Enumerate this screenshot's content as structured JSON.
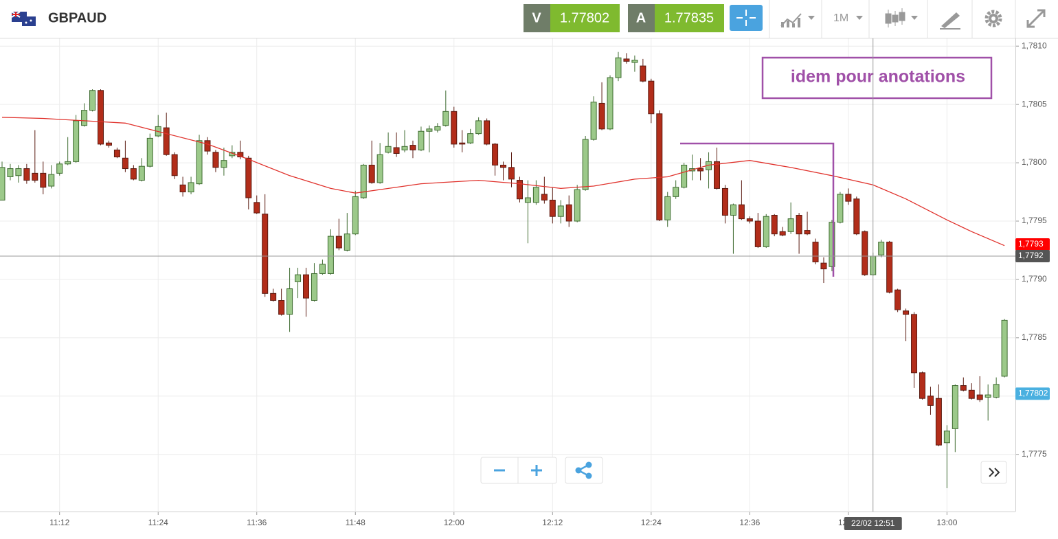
{
  "toolbar": {
    "symbol": "GBPAUD",
    "bid_label": "V",
    "bid": "1.77802",
    "ask_label": "A",
    "ask": "1.77835",
    "timeframe": "1M"
  },
  "chart_data": {
    "type": "candlestick",
    "annotation": "idem pour anotations",
    "up_color": "#9cc98a",
    "down_color": "#b22d1a",
    "xlim": [
      664.75,
      788.33
    ],
    "xticks": [
      {
        "value": 672,
        "label": "11:12"
      },
      {
        "value": 684,
        "label": "11:24"
      },
      {
        "value": 696,
        "label": "11:36"
      },
      {
        "value": 708,
        "label": "11:48"
      },
      {
        "value": 720,
        "label": "12:00"
      },
      {
        "value": 732,
        "label": "12:12"
      },
      {
        "value": 744,
        "label": "12:24"
      },
      {
        "value": 756,
        "label": "12:36"
      },
      {
        "value": 768,
        "label": "12:48"
      },
      {
        "value": 780,
        "label": "13:00"
      }
    ],
    "ylim": [
      1.77701,
      1.78106
    ],
    "yticks": [
      {
        "value": 1.7775,
        "label": "1,7775"
      },
      {
        "value": 1.778,
        "label": "1,7780"
      },
      {
        "value": 1.7785,
        "label": "1,7785"
      },
      {
        "value": 1.779,
        "label": "1,7790"
      },
      {
        "value": 1.7795,
        "label": "1,7795"
      },
      {
        "value": 1.78,
        "label": "1,7800"
      },
      {
        "value": 1.7805,
        "label": "1,7805"
      },
      {
        "value": 1.781,
        "label": "1,7810"
      }
    ],
    "grid": true,
    "x": [
      665,
      666,
      667,
      668,
      669,
      670,
      671,
      672,
      673,
      674,
      675,
      676,
      677,
      678,
      679,
      680,
      681,
      682,
      683,
      684,
      685,
      686,
      687,
      688,
      689,
      690,
      691,
      692,
      693,
      694,
      695,
      696,
      697,
      698,
      699,
      700,
      701,
      702,
      703,
      704,
      705,
      706,
      707,
      708,
      709,
      710,
      711,
      712,
      713,
      714,
      715,
      716,
      717,
      718,
      719,
      720,
      721,
      722,
      723,
      724,
      725,
      726,
      727,
      728,
      729,
      730,
      731,
      732,
      733,
      734,
      735,
      736,
      737,
      738,
      739,
      740,
      741,
      742,
      743,
      744,
      745,
      746,
      747,
      748,
      749,
      750,
      751,
      752,
      753,
      754,
      755,
      756,
      757,
      758,
      759,
      760,
      761,
      762,
      763,
      764,
      765,
      766,
      767,
      768,
      769,
      770,
      771,
      772,
      773,
      774,
      775,
      776,
      777,
      778,
      779,
      780,
      781,
      782,
      783,
      784,
      785,
      786,
      787
    ],
    "open": [
      1.77968,
      1.77988,
      1.77989,
      1.77995,
      1.77991,
      1.77991,
      1.7798,
      1.77991,
      1.77999,
      1.78001,
      1.78032,
      1.78045,
      1.78062,
      1.78017,
      1.78011,
      1.78004,
      1.77995,
      1.77985,
      1.77997,
      1.78023,
      1.7803,
      1.78007,
      1.77981,
      1.77975,
      1.77982,
      1.78019,
      1.78009,
      1.77996,
      1.78006,
      1.78009,
      1.78004,
      1.77966,
      1.77956,
      1.77888,
      1.77882,
      1.7787,
      1.77898,
      1.77904,
      1.77882,
      1.77905,
      1.77905,
      1.77937,
      1.77925,
      1.77939,
      1.7797,
      1.77998,
      1.77983,
      1.78009,
      1.78013,
      1.78011,
      1.78015,
      1.78011,
      1.78027,
      1.78028,
      1.78032,
      1.78044,
      1.78017,
      1.78017,
      1.78025,
      1.78036,
      1.78016,
      1.77998,
      1.77996,
      1.77985,
      1.77966,
      1.77966,
      1.77973,
      1.77968,
      1.77954,
      1.77964,
      1.7795,
      1.77977,
      1.7802,
      1.78051,
      1.78029,
      1.78073,
      1.78089,
      1.78086,
      1.78083,
      1.7807,
      1.78042,
      1.77951,
      1.77971,
      1.77979,
      1.77993,
      1.77995,
      1.77994,
      1.78001,
      1.77978,
      1.77955,
      1.77964,
      1.77952,
      1.7795,
      1.77928,
      1.77955,
      1.77941,
      1.77941,
      1.77955,
      1.77942,
      1.77932,
      1.77914,
      1.77911,
      1.77949,
      1.77973,
      1.77969,
      1.77941,
      1.77904,
      1.77921,
      1.77932,
      1.77891,
      1.77873,
      1.7787,
      1.7782,
      1.778,
      1.77798,
      1.7776,
      1.77772,
      1.77809,
      1.77805,
      1.77801,
      1.77799,
      1.77799,
      1.77817
    ],
    "high": [
      1.78001,
      1.77999,
      1.77998,
      1.77999,
      1.78028,
      1.78001,
      1.77998,
      1.78001,
      1.78022,
      1.78041,
      1.78051,
      1.78063,
      1.78063,
      1.78019,
      1.78013,
      1.78019,
      1.77998,
      1.78004,
      1.78025,
      1.78041,
      1.78043,
      1.78009,
      1.77988,
      1.77988,
      1.78024,
      1.78022,
      1.78011,
      1.78013,
      1.78015,
      1.78019,
      1.78006,
      1.77972,
      1.77973,
      1.77892,
      1.77892,
      1.7791,
      1.7791,
      1.7791,
      1.77914,
      1.77917,
      1.77943,
      1.77952,
      1.77957,
      1.77976,
      1.77999,
      1.78019,
      1.78017,
      1.78026,
      1.78026,
      1.78028,
      1.78019,
      1.78031,
      1.78032,
      1.78034,
      1.78062,
      1.78048,
      1.78028,
      1.78029,
      1.78039,
      1.78038,
      1.78017,
      1.78001,
      1.78009,
      1.77988,
      1.77985,
      1.77985,
      1.77988,
      1.77979,
      1.77968,
      1.77972,
      1.77981,
      1.78023,
      1.78057,
      1.78069,
      1.78075,
      1.78095,
      1.78094,
      1.78092,
      1.78089,
      1.78072,
      1.78045,
      1.77975,
      1.77985,
      1.78,
      1.78007,
      1.78004,
      1.78009,
      1.78013,
      1.77981,
      1.77965,
      1.77985,
      1.77954,
      1.77957,
      1.77956,
      1.77956,
      1.77945,
      1.77966,
      1.77957,
      1.77958,
      1.77935,
      1.77919,
      1.77951,
      1.77975,
      1.77978,
      1.77971,
      1.77942,
      1.77923,
      1.77934,
      1.77933,
      1.77892,
      1.77875,
      1.77872,
      1.77821,
      1.77808,
      1.7781,
      1.77775,
      1.7781,
      1.77816,
      1.77811,
      1.77817,
      1.7781,
      1.77816,
      1.77866
    ],
    "low": [
      1.77968,
      1.77985,
      1.77983,
      1.77982,
      1.77983,
      1.77973,
      1.77978,
      1.77989,
      1.77998,
      1.78,
      1.78031,
      1.78044,
      1.78015,
      1.78013,
      1.78004,
      1.77992,
      1.77985,
      1.77984,
      1.77996,
      1.78022,
      1.78006,
      1.77986,
      1.77971,
      1.77973,
      1.77981,
      1.78007,
      1.77992,
      1.77989,
      1.78004,
      1.78003,
      1.7796,
      1.77956,
      1.77885,
      1.77881,
      1.77869,
      1.77855,
      1.77884,
      1.77868,
      1.77881,
      1.77904,
      1.77904,
      1.77925,
      1.77924,
      1.77938,
      1.77969,
      1.77982,
      1.77982,
      1.78008,
      1.78005,
      1.78009,
      1.78004,
      1.7801,
      1.78009,
      1.78026,
      1.78031,
      1.78013,
      1.78009,
      1.78016,
      1.78024,
      1.78015,
      1.77989,
      1.77985,
      1.77979,
      1.77966,
      1.77931,
      1.77964,
      1.77965,
      1.77948,
      1.77948,
      1.77945,
      1.77949,
      1.77976,
      1.78019,
      1.78028,
      1.78028,
      1.7807,
      1.78085,
      1.78078,
      1.78069,
      1.78034,
      1.7795,
      1.77945,
      1.77969,
      1.77978,
      1.77985,
      1.77985,
      1.77978,
      1.77977,
      1.77948,
      1.77922,
      1.77951,
      1.77948,
      1.77927,
      1.77927,
      1.77937,
      1.77937,
      1.77939,
      1.77922,
      1.77938,
      1.77913,
      1.77897,
      1.77907,
      1.77948,
      1.77964,
      1.77938,
      1.77903,
      1.77903,
      1.77919,
      1.77888,
      1.77872,
      1.77847,
      1.77807,
      1.77797,
      1.77784,
      1.77757,
      1.77721,
      1.77752,
      1.77804,
      1.77797,
      1.77795,
      1.77779,
      1.77798,
      1.77816
    ],
    "close": [
      1.77996,
      1.77995,
      1.77995,
      1.77985,
      1.77985,
      1.77979,
      1.7799,
      1.77999,
      1.78001,
      1.78036,
      1.78045,
      1.78062,
      1.78016,
      1.78015,
      1.78005,
      1.77995,
      1.77986,
      1.77997,
      1.78021,
      1.78031,
      1.78007,
      1.77989,
      1.77975,
      1.77983,
      1.78019,
      1.7801,
      1.77996,
      1.78002,
      1.78009,
      1.78005,
      1.7797,
      1.77957,
      1.77888,
      1.77882,
      1.7787,
      1.77892,
      1.77904,
      1.77884,
      1.77905,
      1.77913,
      1.77937,
      1.77927,
      1.77939,
      1.77971,
      1.77998,
      1.77983,
      1.78007,
      1.78014,
      1.78008,
      1.78014,
      1.78011,
      1.78027,
      1.78029,
      1.78031,
      1.78044,
      1.78016,
      1.78016,
      1.78025,
      1.78036,
      1.78016,
      1.77998,
      1.77996,
      1.77986,
      1.77969,
      1.7797,
      1.77979,
      1.77968,
      1.77954,
      1.77963,
      1.7795,
      1.77977,
      1.7802,
      1.78052,
      1.78029,
      1.78073,
      1.7809,
      1.78087,
      1.78088,
      1.7807,
      1.78042,
      1.77951,
      1.77971,
      1.77979,
      1.77998,
      1.77995,
      1.77993,
      1.78001,
      1.77978,
      1.77955,
      1.77964,
      1.77952,
      1.7795,
      1.77928,
      1.77954,
      1.77939,
      1.77938,
      1.77952,
      1.77939,
      1.77939,
      1.77915,
      1.77909,
      1.77949,
      1.77973,
      1.77967,
      1.77939,
      1.77904,
      1.7792,
      1.77932,
      1.77889,
      1.77874,
      1.7787,
      1.7782,
      1.77798,
      1.77792,
      1.77758,
      1.7777,
      1.77809,
      1.77805,
      1.77798,
      1.77797,
      1.77801,
      1.7781,
      1.77865
    ],
    "moving_average": {
      "color": "#e0312b",
      "x": [
        665,
        670,
        675,
        680,
        685,
        690,
        695,
        700,
        705,
        708,
        711,
        716,
        723,
        728,
        733,
        737,
        742,
        746,
        751,
        756,
        761,
        766,
        771,
        775,
        780,
        783,
        787
      ],
      "values": [
        1.78039,
        1.78038,
        1.78036,
        1.78034,
        1.78025,
        1.78016,
        1.78003,
        1.77989,
        1.77978,
        1.77974,
        1.77977,
        1.77982,
        1.77985,
        1.77982,
        1.77978,
        1.7798,
        1.77986,
        1.77988,
        1.77998,
        1.78002,
        1.77996,
        1.77989,
        1.77981,
        1.77969,
        1.77951,
        1.77941,
        1.77929
      ]
    },
    "crosshair": {
      "x": 771,
      "x_label": "22/02 12:51",
      "y": {
        "value": 1.7792,
        "label": "1,7792"
      }
    },
    "price_markers": [
      {
        "value": 1.7793,
        "label": "1,7793",
        "color": "#ff0000"
      },
      {
        "value": 1.77802,
        "label": "1,77802",
        "color": "#4ab0e0"
      }
    ]
  }
}
